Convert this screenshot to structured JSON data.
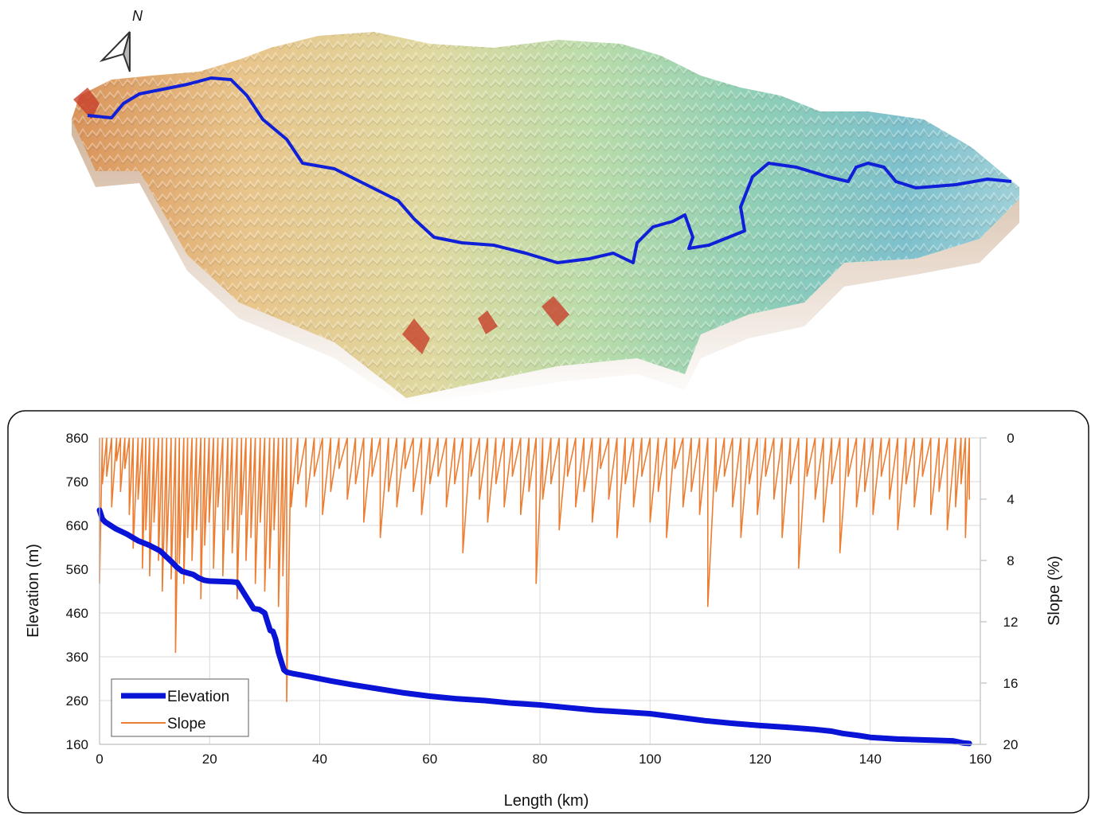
{
  "map": {
    "north_label": "N",
    "colors": {
      "low": "#2f7fd0",
      "mid": "#9fd6b0",
      "high": "#d7a060",
      "peak": "#c03020",
      "river": "#1020d8"
    }
  },
  "chart_data": {
    "type": "line",
    "xlabel": "Length (km)",
    "ylabel": "Elevation (m)",
    "y2label": "Slope (%)",
    "xlim": [
      0,
      160
    ],
    "ylim": [
      160,
      860
    ],
    "y2lim": [
      0,
      20
    ],
    "y2_inverted": true,
    "x_ticks": [
      0,
      20,
      40,
      60,
      80,
      100,
      120,
      140,
      160
    ],
    "y_ticks": [
      160,
      260,
      360,
      460,
      560,
      660,
      760,
      860
    ],
    "y2_ticks": [
      0,
      4,
      8,
      12,
      16,
      20
    ],
    "grid": true,
    "legend_position": "bottom-left",
    "series": [
      {
        "name": "Elevation",
        "axis": "left",
        "color": "#0a14d6",
        "x": [
          0,
          0.5,
          1,
          2,
          3,
          5,
          7,
          9,
          11,
          12,
          13,
          14,
          15,
          17,
          18,
          19,
          20,
          22,
          24,
          25,
          26,
          27,
          28,
          29,
          30,
          30.5,
          31,
          31.5,
          32,
          32.5,
          33,
          33.5,
          34,
          35,
          38,
          42,
          46,
          50,
          55,
          60,
          65,
          70,
          75,
          80,
          85,
          90,
          95,
          100,
          105,
          110,
          115,
          120,
          125,
          130,
          133,
          135,
          138,
          140,
          145,
          150,
          155,
          157,
          158
        ],
        "y": [
          695,
          675,
          668,
          660,
          652,
          640,
          625,
          615,
          602,
          590,
          578,
          565,
          555,
          548,
          540,
          535,
          533,
          532,
          531,
          530,
          510,
          490,
          470,
          468,
          460,
          440,
          420,
          418,
          400,
          370,
          350,
          330,
          325,
          322,
          315,
          305,
          296,
          288,
          278,
          270,
          264,
          260,
          254,
          250,
          244,
          238,
          234,
          230,
          222,
          214,
          208,
          203,
          199,
          194,
          190,
          185,
          180,
          176,
          172,
          170,
          168,
          163,
          162
        ]
      },
      {
        "name": "Slope",
        "axis": "right",
        "color": "#ed7d31",
        "x": [
          0,
          0.5,
          1.3,
          2.2,
          3.1,
          3.8,
          4.6,
          5.4,
          6.1,
          7.0,
          7.8,
          8.4,
          9.1,
          9.9,
          10.7,
          11.4,
          12.2,
          13.0,
          13.8,
          14.5,
          15.3,
          16.0,
          16.8,
          17.6,
          18.4,
          19.1,
          19.9,
          20.7,
          21.5,
          22.4,
          23.3,
          24.1,
          25.0,
          25.8,
          26.6,
          27.5,
          28.3,
          29.2,
          30.0,
          30.9,
          31.7,
          32.5,
          33.3,
          34.0,
          34.8,
          36.0,
          37.5,
          39.0,
          40.5,
          42.0,
          43.5,
          45.0,
          46.5,
          48.0,
          49.5,
          51.0,
          52.5,
          54.0,
          55.5,
          57.0,
          58.5,
          60.0,
          61.5,
          63.0,
          64.5,
          66.0,
          67.5,
          69.0,
          70.5,
          72.0,
          73.5,
          75.0,
          76.5,
          78.0,
          79.3,
          80.5,
          82.0,
          83.5,
          85.0,
          86.5,
          88.0,
          89.5,
          91.0,
          92.5,
          94.0,
          95.5,
          97.0,
          98.5,
          100.0,
          101.5,
          103.0,
          104.5,
          106.0,
          107.5,
          109.0,
          110.5,
          112.0,
          113.5,
          115.0,
          116.5,
          118.0,
          119.5,
          121.0,
          122.5,
          124.0,
          125.5,
          127.0,
          128.5,
          130.0,
          131.5,
          133.0,
          134.5,
          136.0,
          137.5,
          139.0,
          140.5,
          142.0,
          143.5,
          145.0,
          146.5,
          148.0,
          149.5,
          151.0,
          152.5,
          154.0,
          155.5,
          156.5,
          157.3,
          158.0
        ],
        "y": [
          9.5,
          3.0,
          2.5,
          4.5,
          1.5,
          3.5,
          2.0,
          5.0,
          7.2,
          4.0,
          8.5,
          6.0,
          9.0,
          5.5,
          8.0,
          10.0,
          7.5,
          9.2,
          14.0,
          8.2,
          9.5,
          6.5,
          8.0,
          6.0,
          10.5,
          7.0,
          5.5,
          8.5,
          4.5,
          9.0,
          6.0,
          7.5,
          10.5,
          5.0,
          8.0,
          6.5,
          9.5,
          5.5,
          10.0,
          8.5,
          6.0,
          11.0,
          9.0,
          17.2,
          4.5,
          3.0,
          4.5,
          2.5,
          5.0,
          3.5,
          2.0,
          4.0,
          3.0,
          5.5,
          2.5,
          6.5,
          3.5,
          4.5,
          2.0,
          3.5,
          5.0,
          3.0,
          2.5,
          4.5,
          3.0,
          7.5,
          2.5,
          4.0,
          5.5,
          3.0,
          4.5,
          2.5,
          5.0,
          3.5,
          9.5,
          4.0,
          3.0,
          6.0,
          2.5,
          4.5,
          3.5,
          5.5,
          2.0,
          4.0,
          6.5,
          3.0,
          4.5,
          2.5,
          5.5,
          3.5,
          6.5,
          2.0,
          4.5,
          3.5,
          5.0,
          11.0,
          3.5,
          2.5,
          4.5,
          6.5,
          3.0,
          5.0,
          2.5,
          4.0,
          6.5,
          3.0,
          8.5,
          2.5,
          4.0,
          5.5,
          3.0,
          7.5,
          2.5,
          4.5,
          3.5,
          5.0,
          2.5,
          4.0,
          6.0,
          3.0,
          4.5,
          2.5,
          5.0,
          3.5,
          6.0,
          4.5,
          3.0,
          6.5,
          4.0
        ]
      }
    ]
  }
}
